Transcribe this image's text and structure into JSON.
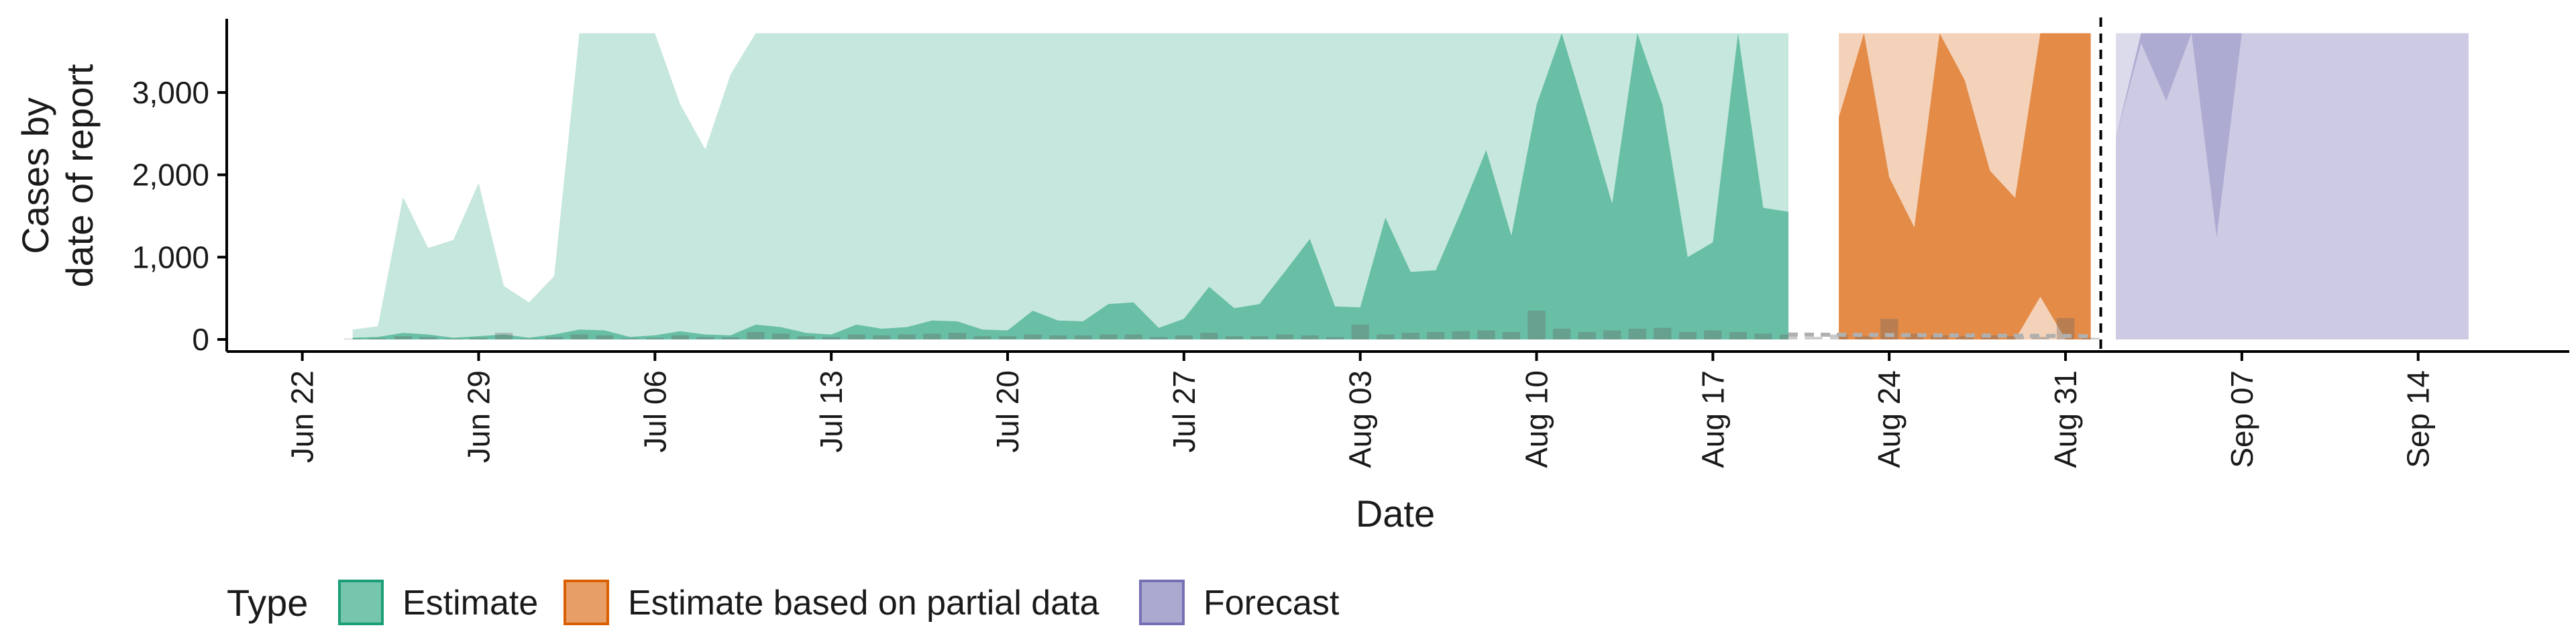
{
  "colors": {
    "estimate": "#1b9e77",
    "partial": "#d95f02",
    "forecast": "#7570b3",
    "axis": "#000000",
    "observed": "#666666"
  },
  "chart_data": {
    "type": "area",
    "xlabel": "Date",
    "ylabel_lines": [
      "Cases by",
      "date of report"
    ],
    "ylim": [
      0,
      3700
    ],
    "y_ticks": [
      0,
      1000,
      2000,
      3000
    ],
    "y_tick_labels": [
      "0",
      "1,000",
      "2,000",
      "3,000"
    ],
    "x_ticks": [
      "2020-06-22",
      "2020-06-29",
      "2020-07-06",
      "2020-07-13",
      "2020-07-20",
      "2020-07-27",
      "2020-08-03",
      "2020-08-10",
      "2020-08-17",
      "2020-08-24",
      "2020-08-31",
      "2020-09-07",
      "2020-09-14"
    ],
    "x_tick_labels": [
      "Jun 22",
      "Jun 29",
      "Jul 06",
      "Jul 13",
      "Jul 20",
      "Jul 27",
      "Aug 03",
      "Aug 10",
      "Aug 17",
      "Aug 24",
      "Aug 31",
      "Sep 07",
      "Sep 14"
    ],
    "xlim": [
      "2020-06-19",
      "2020-09-20"
    ],
    "cutoff_date": "2020-09-01",
    "legend": {
      "title": "Type",
      "position": "bottom",
      "entries": [
        "Estimate",
        "Estimate based on partial data",
        "Forecast"
      ]
    },
    "series": [
      {
        "name": "Estimate",
        "dates": [
          "2020-06-24",
          "2020-06-25",
          "2020-06-26",
          "2020-06-27",
          "2020-06-28",
          "2020-06-29",
          "2020-06-30",
          "2020-07-01",
          "2020-07-02",
          "2020-07-03",
          "2020-07-04",
          "2020-07-05",
          "2020-07-06",
          "2020-07-07",
          "2020-07-08",
          "2020-07-09",
          "2020-07-10",
          "2020-07-11",
          "2020-07-12",
          "2020-07-13",
          "2020-07-14",
          "2020-07-15",
          "2020-07-16",
          "2020-07-17",
          "2020-07-18",
          "2020-07-19",
          "2020-07-20",
          "2020-07-21",
          "2020-07-22",
          "2020-07-23",
          "2020-07-24",
          "2020-07-25",
          "2020-07-26",
          "2020-07-27",
          "2020-07-28",
          "2020-07-29",
          "2020-07-30",
          "2020-07-31",
          "2020-08-01",
          "2020-08-02",
          "2020-08-03",
          "2020-08-04",
          "2020-08-05",
          "2020-08-06",
          "2020-08-07",
          "2020-08-08",
          "2020-08-09",
          "2020-08-10",
          "2020-08-11",
          "2020-08-12",
          "2020-08-13",
          "2020-08-14",
          "2020-08-15",
          "2020-08-16",
          "2020-08-17",
          "2020-08-18",
          "2020-08-19",
          "2020-08-20"
        ],
        "median": [
          20,
          30,
          80,
          60,
          20,
          40,
          60,
          20,
          60,
          120,
          110,
          30,
          50,
          100,
          60,
          50,
          180,
          150,
          80,
          60,
          180,
          130,
          150,
          230,
          220,
          120,
          110,
          350,
          230,
          220,
          430,
          450,
          140,
          250,
          640,
          380,
          430,
          820,
          1220,
          400,
          390,
          1480,
          820,
          840,
          1550,
          2300,
          1260,
          2850,
          3720,
          2700,
          1650,
          3720,
          2850,
          1000,
          1180,
          3720,
          1600,
          1550
        ],
        "upper": [
          120,
          160,
          1730,
          1110,
          1210,
          1900,
          650,
          450,
          770,
          3720,
          3720,
          3720,
          3720,
          2860,
          2310,
          3220,
          3720,
          3720,
          3720,
          3720,
          3720,
          3720,
          3720,
          3720,
          3720,
          3720,
          3720,
          3720,
          3720,
          3720,
          3720,
          3720,
          3720,
          3720,
          3720,
          3720,
          3720,
          3720,
          3720,
          3720,
          3720,
          3720,
          3720,
          3720,
          3720,
          3720,
          3720,
          3720,
          3720,
          3720,
          3720,
          3720,
          3720,
          3720,
          3720,
          3720,
          3720,
          3720
        ]
      },
      {
        "name": "Estimate based on partial data",
        "dates": [
          "2020-08-22",
          "2020-08-23",
          "2020-08-24",
          "2020-08-25",
          "2020-08-26",
          "2020-08-27",
          "2020-08-28",
          "2020-08-29",
          "2020-08-30",
          "2020-08-31",
          "2020-09-01"
        ],
        "median": [
          2700,
          3720,
          1970,
          1360,
          3720,
          3150,
          2050,
          1720,
          3720,
          3720,
          3720
        ],
        "upper": [
          3720,
          3720,
          3720,
          3720,
          3720,
          3720,
          3720,
          3720,
          3720,
          3720,
          3720
        ],
        "lower_min": [
          0,
          0,
          0,
          0,
          0,
          0,
          0,
          0,
          520,
          0,
          0
        ]
      },
      {
        "name": "Forecast",
        "dates": [
          "2020-09-02",
          "2020-09-03",
          "2020-09-04",
          "2020-09-05",
          "2020-09-06",
          "2020-09-07",
          "2020-09-08",
          "2020-09-09",
          "2020-09-10",
          "2020-09-11",
          "2020-09-12",
          "2020-09-13",
          "2020-09-14",
          "2020-09-15",
          "2020-09-16"
        ],
        "median": [
          2450,
          3720,
          3720,
          3720,
          3720,
          3720,
          3720,
          3720,
          3720,
          3720,
          3720,
          3720,
          3720,
          3720,
          3720
        ],
        "inner_upper": [
          2450,
          3600,
          2900,
          3720,
          1240,
          3720,
          3720,
          3720,
          3720,
          3720,
          3720,
          3720,
          3720,
          3720,
          3720
        ],
        "upper": [
          3720,
          3720,
          3720,
          3720,
          3720,
          3720,
          3720,
          3720,
          3720,
          3720,
          3720,
          3720,
          3720,
          3720,
          3720
        ]
      }
    ],
    "observed_bars": {
      "dates": [
        "2020-06-24",
        "2020-06-25",
        "2020-06-26",
        "2020-06-27",
        "2020-06-28",
        "2020-06-29",
        "2020-06-30",
        "2020-07-01",
        "2020-07-02",
        "2020-07-03",
        "2020-07-04",
        "2020-07-05",
        "2020-07-06",
        "2020-07-07",
        "2020-07-08",
        "2020-07-09",
        "2020-07-10",
        "2020-07-11",
        "2020-07-12",
        "2020-07-13",
        "2020-07-14",
        "2020-07-15",
        "2020-07-16",
        "2020-07-17",
        "2020-07-18",
        "2020-07-19",
        "2020-07-20",
        "2020-07-21",
        "2020-07-22",
        "2020-07-23",
        "2020-07-24",
        "2020-07-25",
        "2020-07-26",
        "2020-07-27",
        "2020-07-28",
        "2020-07-29",
        "2020-07-30",
        "2020-07-31",
        "2020-08-01",
        "2020-08-02",
        "2020-08-03",
        "2020-08-04",
        "2020-08-05",
        "2020-08-06",
        "2020-08-07",
        "2020-08-08",
        "2020-08-09",
        "2020-08-10",
        "2020-08-11",
        "2020-08-12",
        "2020-08-13",
        "2020-08-14",
        "2020-08-15",
        "2020-08-16",
        "2020-08-17",
        "2020-08-18",
        "2020-08-19",
        "2020-08-20",
        "2020-08-21",
        "2020-08-22",
        "2020-08-23",
        "2020-08-24",
        "2020-08-25",
        "2020-08-26",
        "2020-08-27",
        "2020-08-28",
        "2020-08-29",
        "2020-08-30",
        "2020-08-31",
        "2020-09-01"
      ],
      "values": [
        10,
        15,
        40,
        30,
        10,
        20,
        80,
        10,
        30,
        60,
        50,
        15,
        20,
        50,
        30,
        25,
        90,
        70,
        40,
        30,
        60,
        50,
        60,
        70,
        80,
        40,
        40,
        60,
        50,
        50,
        60,
        60,
        30,
        50,
        80,
        40,
        40,
        60,
        50,
        30,
        180,
        60,
        80,
        90,
        100,
        110,
        90,
        350,
        130,
        90,
        110,
        130,
        140,
        90,
        110,
        90,
        70,
        60,
        30,
        60,
        40,
        250,
        70,
        50,
        40,
        50,
        40,
        30,
        260,
        20
      ]
    }
  }
}
